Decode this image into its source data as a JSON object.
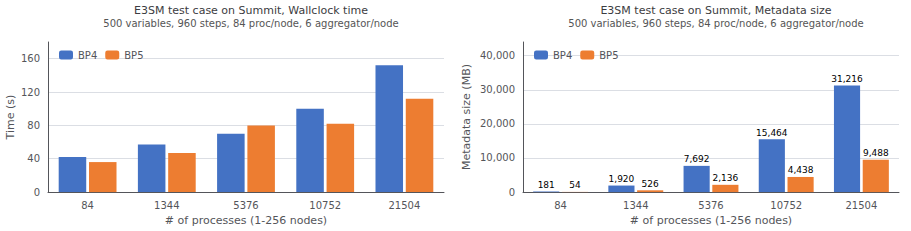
{
  "chart_data": [
    {
      "type": "bar",
      "title": "E3SM test case on Summit, Wallclock time",
      "subtitle": "500 variables, 960 steps, 84 proc/node, 6 aggregator/node",
      "categories": [
        "84",
        "1344",
        "5376",
        "10752",
        "21504"
      ],
      "series": [
        {
          "name": "BP4",
          "color": "#4472C4",
          "values": [
            42,
            57,
            70,
            100,
            152
          ]
        },
        {
          "name": "BP5",
          "color": "#ED7D31",
          "values": [
            36,
            47,
            80,
            82,
            112
          ]
        }
      ],
      "xlabel": "# of processes (1-256 nodes)",
      "ylabel": "Time (s)",
      "ylim": [
        0,
        180
      ],
      "yticks": [
        0,
        40,
        80,
        120,
        160
      ],
      "grid": true,
      "legend": "upper left"
    },
    {
      "type": "bar",
      "title": "E3SM test case on Summit, Metadata size",
      "subtitle": "500 variables, 960 steps, 84 proc/node, 6 aggregator/node",
      "categories": [
        "84",
        "1344",
        "5376",
        "10752",
        "21504"
      ],
      "series": [
        {
          "name": "BP4",
          "color": "#4472C4",
          "values": [
            181,
            1920,
            7692,
            15464,
            31216
          ],
          "value_labels": [
            "181",
            "1,920",
            "7,692",
            "15,464",
            "31,216"
          ]
        },
        {
          "name": "BP5",
          "color": "#ED7D31",
          "values": [
            54,
            526,
            2136,
            4438,
            9488
          ],
          "value_labels": [
            "54",
            "526",
            "2,136",
            "4,438",
            "9,488"
          ]
        }
      ],
      "xlabel": "# of processes (1-256 nodes)",
      "ylabel": "Metadata size (MB)",
      "ylim": [
        0,
        44000
      ],
      "yticks": [
        0,
        {
          "value": 10000,
          "label": "10,000"
        },
        {
          "value": 20000,
          "label": "20,000"
        },
        {
          "value": 30000,
          "label": "30,000"
        },
        {
          "value": 40000,
          "label": "40,000"
        }
      ],
      "data_labels": true,
      "grid": true,
      "legend": "upper left"
    }
  ]
}
